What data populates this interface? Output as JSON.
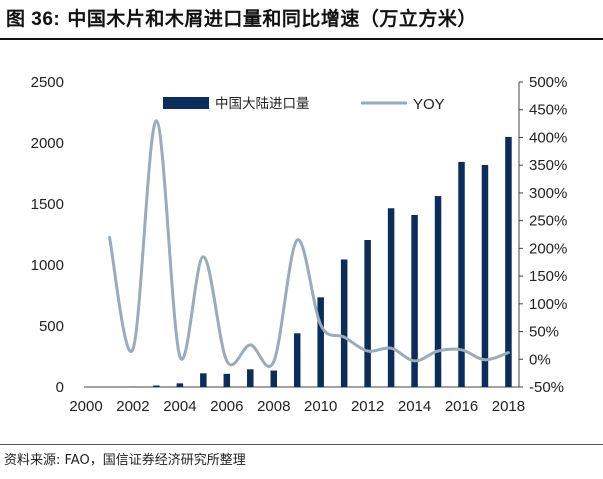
{
  "figure": {
    "title_prefix": "图 36:",
    "title_text": "中国木片和木屑进口量和同比增速（万立方米）",
    "source": "资料来源: FAO，国信证券经济研究所整理"
  },
  "chart_data": {
    "type": "bar",
    "title": "中国木片和木屑进口量和同比增速（万立方米）",
    "x": [
      2000,
      2001,
      2002,
      2003,
      2004,
      2005,
      2006,
      2007,
      2008,
      2009,
      2010,
      2011,
      2012,
      2013,
      2014,
      2015,
      2016,
      2017,
      2018
    ],
    "x_tick_labels": [
      "2000",
      "2002",
      "2004",
      "2006",
      "2008",
      "2010",
      "2012",
      "2014",
      "2016",
      "2018"
    ],
    "y_left_ticks": [
      "0",
      "500",
      "1000",
      "1500",
      "2000",
      "2500"
    ],
    "y_right_ticks": [
      "-50%",
      "0%",
      "50%",
      "100%",
      "150%",
      "200%",
      "250%",
      "300%",
      "350%",
      "400%",
      "450%",
      "500%"
    ],
    "ylim_left": [
      0,
      2500
    ],
    "ylim_right": [
      -0.5,
      5.0
    ],
    "series": [
      {
        "name": "中国大陆进口量",
        "type": "bar",
        "axis": "left",
        "color": "#0b2d5b",
        "values": [
          0,
          0,
          3,
          12,
          30,
          112,
          108,
          145,
          135,
          440,
          735,
          1045,
          1205,
          1465,
          1410,
          1565,
          1845,
          1820,
          2050
        ]
      },
      {
        "name": "YOY",
        "type": "line",
        "axis": "right",
        "color": "#9aabbc",
        "values": [
          null,
          2.2,
          0.18,
          4.3,
          0.05,
          1.85,
          -0.03,
          0.26,
          -0.04,
          2.15,
          0.62,
          0.4,
          0.15,
          0.2,
          -0.03,
          0.15,
          0.17,
          -0.01,
          0.12
        ]
      }
    ],
    "legend_position": "top",
    "grid": false
  }
}
